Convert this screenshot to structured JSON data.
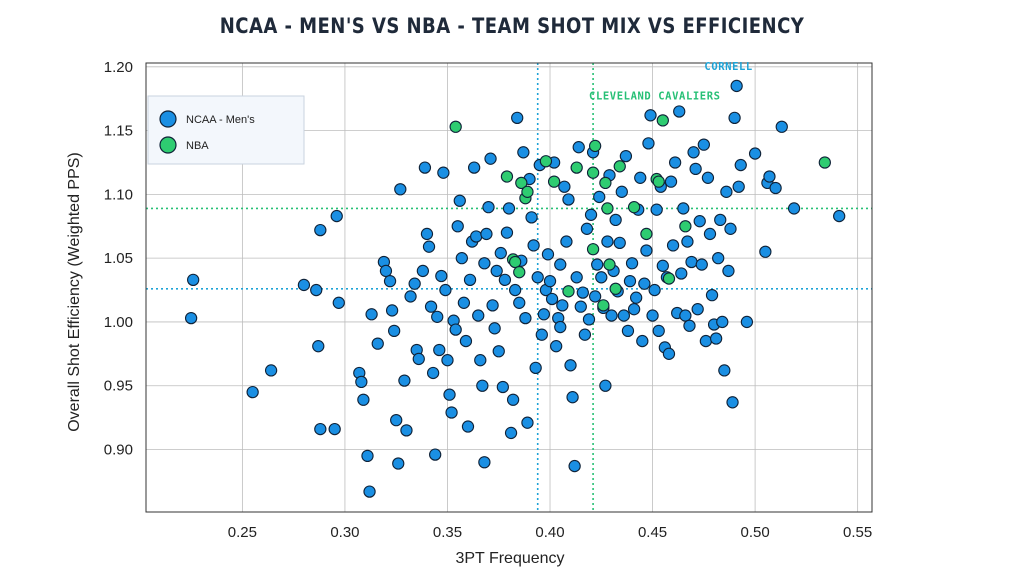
{
  "colors": {
    "ncaa": "#1a8fe3",
    "nba": "#2ecc71",
    "ncaa_ref": "#1fa3d6",
    "nba_ref": "#27c076",
    "grid": "#bdbdbd"
  },
  "chart_data": {
    "type": "scatter",
    "title": "NCAA - MEN'S VS NBA - TEAM SHOT MIX VS EFFICIENCY",
    "xlabel": "3PT Frequency",
    "ylabel": "Overall Shot Efficiency (Weighted PPS)",
    "xlim": [
      0.203,
      0.557
    ],
    "ylim": [
      0.851,
      1.203
    ],
    "xticks": [
      "0.25",
      "0.30",
      "0.35",
      "0.40",
      "0.45",
      "0.50",
      "0.55"
    ],
    "yticks": [
      "0.90",
      "0.95",
      "1.00",
      "1.05",
      "1.10",
      "1.15",
      "1.20"
    ],
    "grid": true,
    "legend_position": "top-left",
    "reference_lines": {
      "ncaa": {
        "x": 0.394,
        "y": 1.026
      },
      "nba": {
        "x": 0.421,
        "y": 1.089
      }
    },
    "annotations": [
      {
        "text": "CORNELL",
        "series": "NCAA - Men's",
        "x": 0.491,
        "y": 1.185
      },
      {
        "text": "CLEVELAND CAVALIERS",
        "series": "NBA",
        "x": 0.455,
        "y": 1.158
      }
    ],
    "series": [
      {
        "name": "NCAA - Men's",
        "points": [
          [
            0.225,
            1.003
          ],
          [
            0.226,
            1.033
          ],
          [
            0.255,
            0.945
          ],
          [
            0.264,
            0.962
          ],
          [
            0.28,
            1.029
          ],
          [
            0.286,
            1.025
          ],
          [
            0.287,
            0.981
          ],
          [
            0.288,
            0.916
          ],
          [
            0.288,
            1.072
          ],
          [
            0.295,
            0.916
          ],
          [
            0.296,
            1.083
          ],
          [
            0.297,
            1.015
          ],
          [
            0.307,
            0.96
          ],
          [
            0.308,
            0.953
          ],
          [
            0.309,
            0.939
          ],
          [
            0.311,
            0.895
          ],
          [
            0.312,
            0.867
          ],
          [
            0.313,
            1.006
          ],
          [
            0.316,
            0.983
          ],
          [
            0.319,
            1.047
          ],
          [
            0.32,
            1.04
          ],
          [
            0.322,
            1.032
          ],
          [
            0.323,
            1.009
          ],
          [
            0.324,
            0.993
          ],
          [
            0.325,
            0.923
          ],
          [
            0.326,
            0.889
          ],
          [
            0.327,
            1.104
          ],
          [
            0.329,
            0.954
          ],
          [
            0.33,
            0.915
          ],
          [
            0.332,
            1.02
          ],
          [
            0.334,
            1.03
          ],
          [
            0.335,
            0.978
          ],
          [
            0.336,
            0.971
          ],
          [
            0.338,
            1.04
          ],
          [
            0.339,
            1.121
          ],
          [
            0.34,
            1.069
          ],
          [
            0.341,
            1.059
          ],
          [
            0.342,
            1.012
          ],
          [
            0.343,
            0.96
          ],
          [
            0.344,
            0.896
          ],
          [
            0.345,
            1.004
          ],
          [
            0.346,
            0.978
          ],
          [
            0.347,
            1.036
          ],
          [
            0.348,
            1.117
          ],
          [
            0.349,
            1.025
          ],
          [
            0.35,
            0.97
          ],
          [
            0.351,
            0.943
          ],
          [
            0.352,
            0.929
          ],
          [
            0.353,
            1.001
          ],
          [
            0.354,
            0.994
          ],
          [
            0.355,
            1.075
          ],
          [
            0.356,
            1.095
          ],
          [
            0.357,
            1.05
          ],
          [
            0.358,
            1.015
          ],
          [
            0.359,
            0.985
          ],
          [
            0.36,
            0.918
          ],
          [
            0.361,
            1.033
          ],
          [
            0.362,
            1.063
          ],
          [
            0.363,
            1.121
          ],
          [
            0.364,
            1.067
          ],
          [
            0.365,
            1.005
          ],
          [
            0.366,
            0.97
          ],
          [
            0.367,
            0.95
          ],
          [
            0.368,
            1.046
          ],
          [
            0.368,
            0.89
          ],
          [
            0.369,
            1.069
          ],
          [
            0.37,
            1.09
          ],
          [
            0.371,
            1.128
          ],
          [
            0.372,
            1.013
          ],
          [
            0.373,
            0.995
          ],
          [
            0.374,
            1.04
          ],
          [
            0.375,
            0.977
          ],
          [
            0.376,
            1.054
          ],
          [
            0.377,
            0.949
          ],
          [
            0.378,
            1.033
          ],
          [
            0.379,
            1.07
          ],
          [
            0.38,
            1.089
          ],
          [
            0.381,
            0.913
          ],
          [
            0.382,
            0.939
          ],
          [
            0.383,
            1.025
          ],
          [
            0.384,
            1.16
          ],
          [
            0.385,
            1.015
          ],
          [
            0.386,
            1.048
          ],
          [
            0.387,
            1.133
          ],
          [
            0.388,
            1.003
          ],
          [
            0.389,
            0.921
          ],
          [
            0.39,
            1.112
          ],
          [
            0.391,
            1.082
          ],
          [
            0.392,
            1.06
          ],
          [
            0.393,
            0.964
          ],
          [
            0.394,
            1.035
          ],
          [
            0.395,
            1.123
          ],
          [
            0.396,
            0.99
          ],
          [
            0.397,
            1.006
          ],
          [
            0.398,
            1.025
          ],
          [
            0.399,
            1.053
          ],
          [
            0.4,
            1.032
          ],
          [
            0.401,
            1.018
          ],
          [
            0.402,
            1.125
          ],
          [
            0.403,
            0.981
          ],
          [
            0.404,
            1.003
          ],
          [
            0.405,
            1.045
          ],
          [
            0.406,
            1.013
          ],
          [
            0.407,
            1.106
          ],
          [
            0.408,
            1.063
          ],
          [
            0.409,
            1.096
          ],
          [
            0.41,
            0.966
          ],
          [
            0.411,
            0.941
          ],
          [
            0.412,
            0.887
          ],
          [
            0.413,
            1.035
          ],
          [
            0.414,
            1.137
          ],
          [
            0.415,
            1.012
          ],
          [
            0.416,
            1.023
          ],
          [
            0.417,
            0.99
          ],
          [
            0.418,
            1.073
          ],
          [
            0.419,
            1.002
          ],
          [
            0.42,
            1.084
          ],
          [
            0.421,
            1.133
          ],
          [
            0.422,
            1.02
          ],
          [
            0.423,
            1.045
          ],
          [
            0.424,
            1.098
          ],
          [
            0.425,
            1.035
          ],
          [
            0.426,
            1.011
          ],
          [
            0.427,
            0.95
          ],
          [
            0.428,
            1.063
          ],
          [
            0.429,
            1.115
          ],
          [
            0.43,
            1.005
          ],
          [
            0.431,
            1.04
          ],
          [
            0.432,
            1.08
          ],
          [
            0.433,
            1.024
          ],
          [
            0.434,
            1.062
          ],
          [
            0.435,
            1.102
          ],
          [
            0.436,
            1.005
          ],
          [
            0.437,
            1.13
          ],
          [
            0.438,
            0.993
          ],
          [
            0.439,
            1.032
          ],
          [
            0.44,
            1.046
          ],
          [
            0.441,
            1.01
          ],
          [
            0.442,
            1.019
          ],
          [
            0.443,
            1.088
          ],
          [
            0.444,
            1.113
          ],
          [
            0.445,
            0.985
          ],
          [
            0.446,
            1.03
          ],
          [
            0.447,
            1.056
          ],
          [
            0.448,
            1.14
          ],
          [
            0.449,
            1.162
          ],
          [
            0.45,
            1.005
          ],
          [
            0.451,
            1.025
          ],
          [
            0.452,
            1.088
          ],
          [
            0.453,
            0.993
          ],
          [
            0.454,
            1.106
          ],
          [
            0.455,
            1.044
          ],
          [
            0.456,
            0.98
          ],
          [
            0.457,
            1.035
          ],
          [
            0.458,
            0.975
          ],
          [
            0.459,
            1.11
          ],
          [
            0.46,
            1.06
          ],
          [
            0.461,
            1.125
          ],
          [
            0.462,
            1.007
          ],
          [
            0.463,
            1.165
          ],
          [
            0.464,
            1.038
          ],
          [
            0.465,
            1.089
          ],
          [
            0.466,
            1.005
          ],
          [
            0.467,
            1.063
          ],
          [
            0.468,
            0.997
          ],
          [
            0.469,
            1.047
          ],
          [
            0.47,
            1.133
          ],
          [
            0.471,
            1.12
          ],
          [
            0.472,
            1.01
          ],
          [
            0.473,
            1.079
          ],
          [
            0.474,
            1.045
          ],
          [
            0.475,
            1.139
          ],
          [
            0.476,
            0.985
          ],
          [
            0.477,
            1.113
          ],
          [
            0.478,
            1.069
          ],
          [
            0.479,
            1.021
          ],
          [
            0.48,
            0.998
          ],
          [
            0.481,
            0.987
          ],
          [
            0.482,
            1.05
          ],
          [
            0.483,
            1.08
          ],
          [
            0.484,
            1.0
          ],
          [
            0.485,
            0.962
          ],
          [
            0.486,
            1.102
          ],
          [
            0.487,
            1.04
          ],
          [
            0.488,
            1.073
          ],
          [
            0.489,
            0.937
          ],
          [
            0.49,
            1.16
          ],
          [
            0.491,
            1.185
          ],
          [
            0.492,
            1.106
          ],
          [
            0.493,
            1.123
          ],
          [
            0.496,
            1.0
          ],
          [
            0.5,
            1.132
          ],
          [
            0.505,
            1.055
          ],
          [
            0.506,
            1.109
          ],
          [
            0.507,
            1.114
          ],
          [
            0.51,
            1.105
          ],
          [
            0.513,
            1.153
          ],
          [
            0.519,
            1.089
          ],
          [
            0.541,
            1.083
          ],
          [
            0.405,
            0.996
          ]
        ]
      },
      {
        "name": "NBA",
        "points": [
          [
            0.354,
            1.153
          ],
          [
            0.379,
            1.114
          ],
          [
            0.382,
            1.049
          ],
          [
            0.383,
            1.047
          ],
          [
            0.385,
            1.039
          ],
          [
            0.386,
            1.109
          ],
          [
            0.388,
            1.097
          ],
          [
            0.389,
            1.102
          ],
          [
            0.398,
            1.126
          ],
          [
            0.402,
            1.11
          ],
          [
            0.409,
            1.024
          ],
          [
            0.413,
            1.121
          ],
          [
            0.421,
            1.057
          ],
          [
            0.421,
            1.117
          ],
          [
            0.422,
            1.138
          ],
          [
            0.426,
            1.013
          ],
          [
            0.427,
            1.109
          ],
          [
            0.428,
            1.089
          ],
          [
            0.429,
            1.045
          ],
          [
            0.432,
            1.026
          ],
          [
            0.434,
            1.122
          ],
          [
            0.441,
            1.09
          ],
          [
            0.447,
            1.069
          ],
          [
            0.452,
            1.112
          ],
          [
            0.453,
            1.11
          ],
          [
            0.455,
            1.158
          ],
          [
            0.458,
            1.034
          ],
          [
            0.466,
            1.075
          ],
          [
            0.534,
            1.125
          ]
        ]
      }
    ],
    "legend": [
      "NCAA - Men's",
      "NBA"
    ]
  }
}
